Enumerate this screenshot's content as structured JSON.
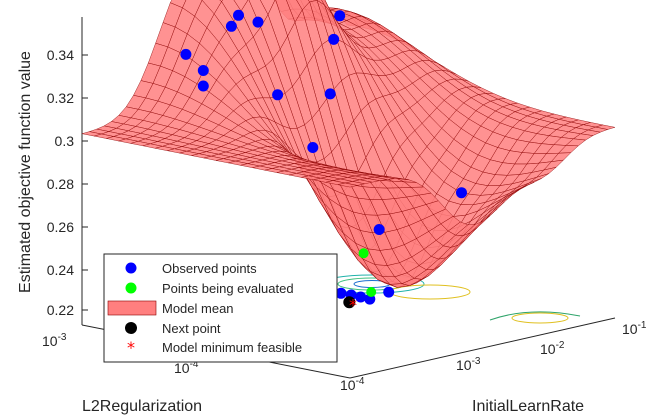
{
  "chart_data": {
    "type": "surface",
    "zlabel": "Estimated objective function value",
    "xlabel": "InitialLearnRate",
    "ylabel": "L2Regularization",
    "zlim": [
      0.22,
      0.35
    ],
    "z_ticks": [
      "0.22",
      "0.24",
      "0.26",
      "0.28",
      "0.3",
      "0.32",
      "0.34"
    ],
    "x_ticks": [
      {
        "base": "10",
        "exp": "-4",
        "value": 0.0001
      },
      {
        "base": "10",
        "exp": "-3",
        "value": 0.001
      },
      {
        "base": "10",
        "exp": "-2",
        "value": 0.01
      },
      {
        "base": "10",
        "exp": "-1",
        "value": 0.1
      }
    ],
    "y_ticks": [
      {
        "base": "10",
        "exp": "-3",
        "value": 0.001
      },
      {
        "base": "10",
        "exp": "-4",
        "value": 0.0001
      }
    ],
    "legend": {
      "position": "bottom-left",
      "entries": [
        {
          "label": "Observed points",
          "marker": "dot",
          "color": "#0000ff"
        },
        {
          "label": "Points being evaluated",
          "marker": "dot",
          "color": "#00ff00"
        },
        {
          "label": "Model mean",
          "marker": "patch",
          "color": "#ff7f7f"
        },
        {
          "label": "Next point",
          "marker": "dot",
          "color": "#000000"
        },
        {
          "label": "Model minimum feasible",
          "marker": "star",
          "color": "#ff0000"
        }
      ]
    },
    "observed_points": [
      {
        "x": 0.003,
        "y": 0.0008,
        "z": 0.347
      },
      {
        "x": 0.003,
        "y": 0.00085,
        "z": 0.3415
      },
      {
        "x": 0.0015,
        "y": 0.001,
        "z": 0.33
      },
      {
        "x": 0.0012,
        "y": 0.0008,
        "z": 0.326
      },
      {
        "x": 0.0008,
        "y": 0.0007,
        "z": 0.322
      },
      {
        "x": 0.002,
        "y": 0.0005,
        "z": 0.318
      },
      {
        "x": 0.004,
        "y": 0.0004,
        "z": 0.318
      },
      {
        "x": 0.015,
        "y": 0.0006,
        "z": 0.333
      },
      {
        "x": 0.06,
        "y": 0.0009,
        "z": 0.334
      },
      {
        "x": 0.015,
        "y": 0.0002,
        "z": 0.276
      },
      {
        "x": 0.005,
        "y": 0.0005,
        "z": 0.291
      },
      {
        "x": 0.006,
        "y": 0.0003,
        "z": 0.259
      },
      {
        "x": 0.005,
        "y": 0.0008,
        "z": 0.342
      },
      {
        "x": 0.0015,
        "y": 0.0003,
        "z": 0.237
      },
      {
        "x": 0.0018,
        "y": 0.00028,
        "z": 0.236
      },
      {
        "x": 0.0021,
        "y": 0.00027,
        "z": 0.235
      },
      {
        "x": 0.0024,
        "y": 0.00026,
        "z": 0.234
      },
      {
        "x": 0.0027,
        "y": 0.00025,
        "z": 0.233
      },
      {
        "x": 0.003,
        "y": 0.00022,
        "z": 0.237
      }
    ],
    "points_being_evaluated": [
      {
        "x": 0.004,
        "y": 0.0003,
        "z": 0.25
      },
      {
        "x": 0.0028,
        "y": 0.00025,
        "z": 0.236
      }
    ],
    "next_point": {
      "x": 0.002,
      "y": 0.00027,
      "z": 0.232
    },
    "model_minimum_feasible": {
      "x": 0.0022,
      "y": 0.00027,
      "z": 0.231
    },
    "colors": {
      "surface_fill": "#ff7f7f",
      "surface_edge": "#8a0000",
      "axis": "#262626"
    }
  }
}
